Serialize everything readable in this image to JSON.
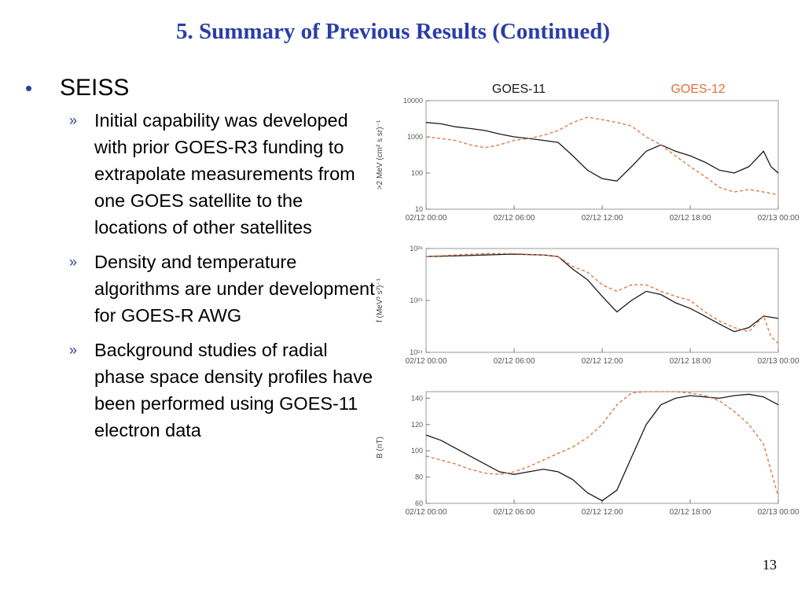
{
  "slide": {
    "title": "5. Summary of Previous Results (Continued)",
    "bullet": "SEISS",
    "sub_marker": "»",
    "sub_bullets": [
      "Initial capability was developed with prior GOES-R3 funding to extrapolate measurements from one GOES satellite to the locations of other satellites",
      "Density and temperature algorithms are under development for GOES-R AWG",
      "Background studies of radial phase space density profiles have been performed using GOES-11 electron data"
    ],
    "page_number": "13"
  },
  "colors": {
    "title": "#2a3ea6",
    "goes11": "#1a1a1a",
    "goes12": "#e0703a"
  },
  "chart_data": [
    {
      "type": "line",
      "legend": [
        "GOES-11",
        "GOES-12"
      ],
      "ylabel": ">2 MeV (cm² s sr)⁻¹",
      "yscale": "log",
      "ylim": [
        10,
        10000
      ],
      "yticks": [
        {
          "v": 10,
          "label": "10"
        },
        {
          "v": 100,
          "label": "100"
        },
        {
          "v": 1000,
          "label": "1000"
        },
        {
          "v": 10000,
          "label": "10000"
        }
      ],
      "xticks": [
        "02/12 00:00",
        "02/12 06:00",
        "02/12 12:00",
        "02/12 18:00",
        "02/13 00:00"
      ],
      "xlim": [
        0,
        24
      ],
      "series": [
        {
          "name": "GOES-11",
          "dash": false,
          "x": [
            0,
            1,
            2,
            3,
            4,
            5,
            6,
            7,
            8,
            9,
            10,
            11,
            12,
            13,
            14,
            15,
            16,
            17,
            18,
            19,
            20,
            21,
            22,
            23,
            23.5,
            24
          ],
          "y": [
            2500,
            2300,
            1900,
            1700,
            1500,
            1200,
            1000,
            900,
            800,
            700,
            300,
            120,
            70,
            60,
            150,
            400,
            600,
            400,
            300,
            200,
            120,
            100,
            150,
            400,
            150,
            100
          ]
        },
        {
          "name": "GOES-12",
          "dash": true,
          "x": [
            0,
            1,
            2,
            3,
            4,
            5,
            6,
            7,
            8,
            9,
            10,
            11,
            12,
            13,
            14,
            15,
            16,
            17,
            18,
            19,
            20,
            21,
            22,
            23,
            24
          ],
          "y": [
            1000,
            900,
            800,
            600,
            500,
            600,
            800,
            900,
            1100,
            1500,
            2500,
            3500,
            3000,
            2500,
            2000,
            1000,
            600,
            300,
            150,
            80,
            40,
            30,
            35,
            30,
            25
          ]
        }
      ]
    },
    {
      "type": "line",
      "ylabel": "f (MeV³ s³)⁻¹",
      "yscale": "log",
      "ylim": [
        1e+24,
        1e+26
      ],
      "yticks": [
        {
          "v": 1e+24,
          "label": "10²⁴"
        },
        {
          "v": 1e+25,
          "label": "10²⁵"
        },
        {
          "v": 1e+26,
          "label": "10²⁶"
        }
      ],
      "xticks": [
        "02/12 00:00",
        "02/12 06:00",
        "02/12 12:00",
        "02/12 18:00",
        "02/13 00:00"
      ],
      "xlim": [
        0,
        24
      ],
      "series": [
        {
          "name": "GOES-11",
          "dash": false,
          "x": [
            0,
            2,
            4,
            6,
            8,
            9,
            10,
            11,
            12,
            13,
            14,
            15,
            16,
            17,
            18,
            19,
            20,
            21,
            22,
            23,
            24
          ],
          "y": [
            7e+25,
            7.2e+25,
            7.5e+25,
            7.8e+25,
            7.5e+25,
            7e+25,
            4e+25,
            2.5e+25,
            1.2e+25,
            6e+24,
            1e+25,
            1.5e+25,
            1.3e+25,
            9e+24,
            7e+24,
            5e+24,
            3.5e+24,
            2.5e+24,
            3e+24,
            5e+24,
            4.5e+24
          ]
        },
        {
          "name": "GOES-12",
          "dash": true,
          "x": [
            0,
            2,
            4,
            6,
            8,
            9,
            10,
            11,
            12,
            13,
            14,
            15,
            16,
            17,
            18,
            19,
            20,
            21,
            22,
            23,
            23.5,
            24
          ],
          "y": [
            7e+25,
            7.5e+25,
            8e+25,
            8e+25,
            7.5e+25,
            7e+25,
            4.5e+25,
            3.5e+25,
            2e+25,
            1.5e+25,
            2e+25,
            2e+25,
            1.5e+25,
            1.2e+25,
            1e+25,
            6e+24,
            4e+24,
            3e+24,
            2.5e+24,
            5e+24,
            2e+24,
            1.5e+24
          ]
        }
      ]
    },
    {
      "type": "line",
      "ylabel": "B (nT)",
      "yscale": "linear",
      "ylim": [
        60,
        145
      ],
      "yticks": [
        {
          "v": 60,
          "label": "60"
        },
        {
          "v": 80,
          "label": "80"
        },
        {
          "v": 100,
          "label": "100"
        },
        {
          "v": 120,
          "label": "120"
        },
        {
          "v": 140,
          "label": "140"
        }
      ],
      "xticks": [
        "02/12 00:00",
        "02/12 06:00",
        "02/12 12:00",
        "02/12 18:00",
        "02/13 00:00"
      ],
      "xlim": [
        0,
        24
      ],
      "series": [
        {
          "name": "GOES-11",
          "dash": false,
          "x": [
            0,
            1,
            2,
            3,
            4,
            5,
            6,
            7,
            8,
            9,
            10,
            11,
            12,
            13,
            14,
            15,
            16,
            17,
            18,
            19,
            20,
            21,
            22,
            23,
            24
          ],
          "y": [
            112,
            108,
            102,
            96,
            90,
            84,
            82,
            84,
            86,
            84,
            78,
            68,
            62,
            70,
            95,
            120,
            135,
            140,
            142,
            141,
            140,
            142,
            143,
            141,
            135
          ]
        },
        {
          "name": "GOES-12",
          "dash": true,
          "x": [
            0,
            1,
            2,
            3,
            4,
            5,
            6,
            7,
            8,
            9,
            10,
            11,
            12,
            13,
            14,
            15,
            16,
            17,
            18,
            19,
            20,
            21,
            22,
            23,
            24
          ],
          "y": [
            96,
            93,
            90,
            86,
            83,
            82,
            84,
            88,
            93,
            98,
            103,
            110,
            120,
            135,
            144,
            145,
            145,
            145,
            144,
            142,
            138,
            130,
            120,
            105,
            65
          ]
        }
      ]
    }
  ]
}
